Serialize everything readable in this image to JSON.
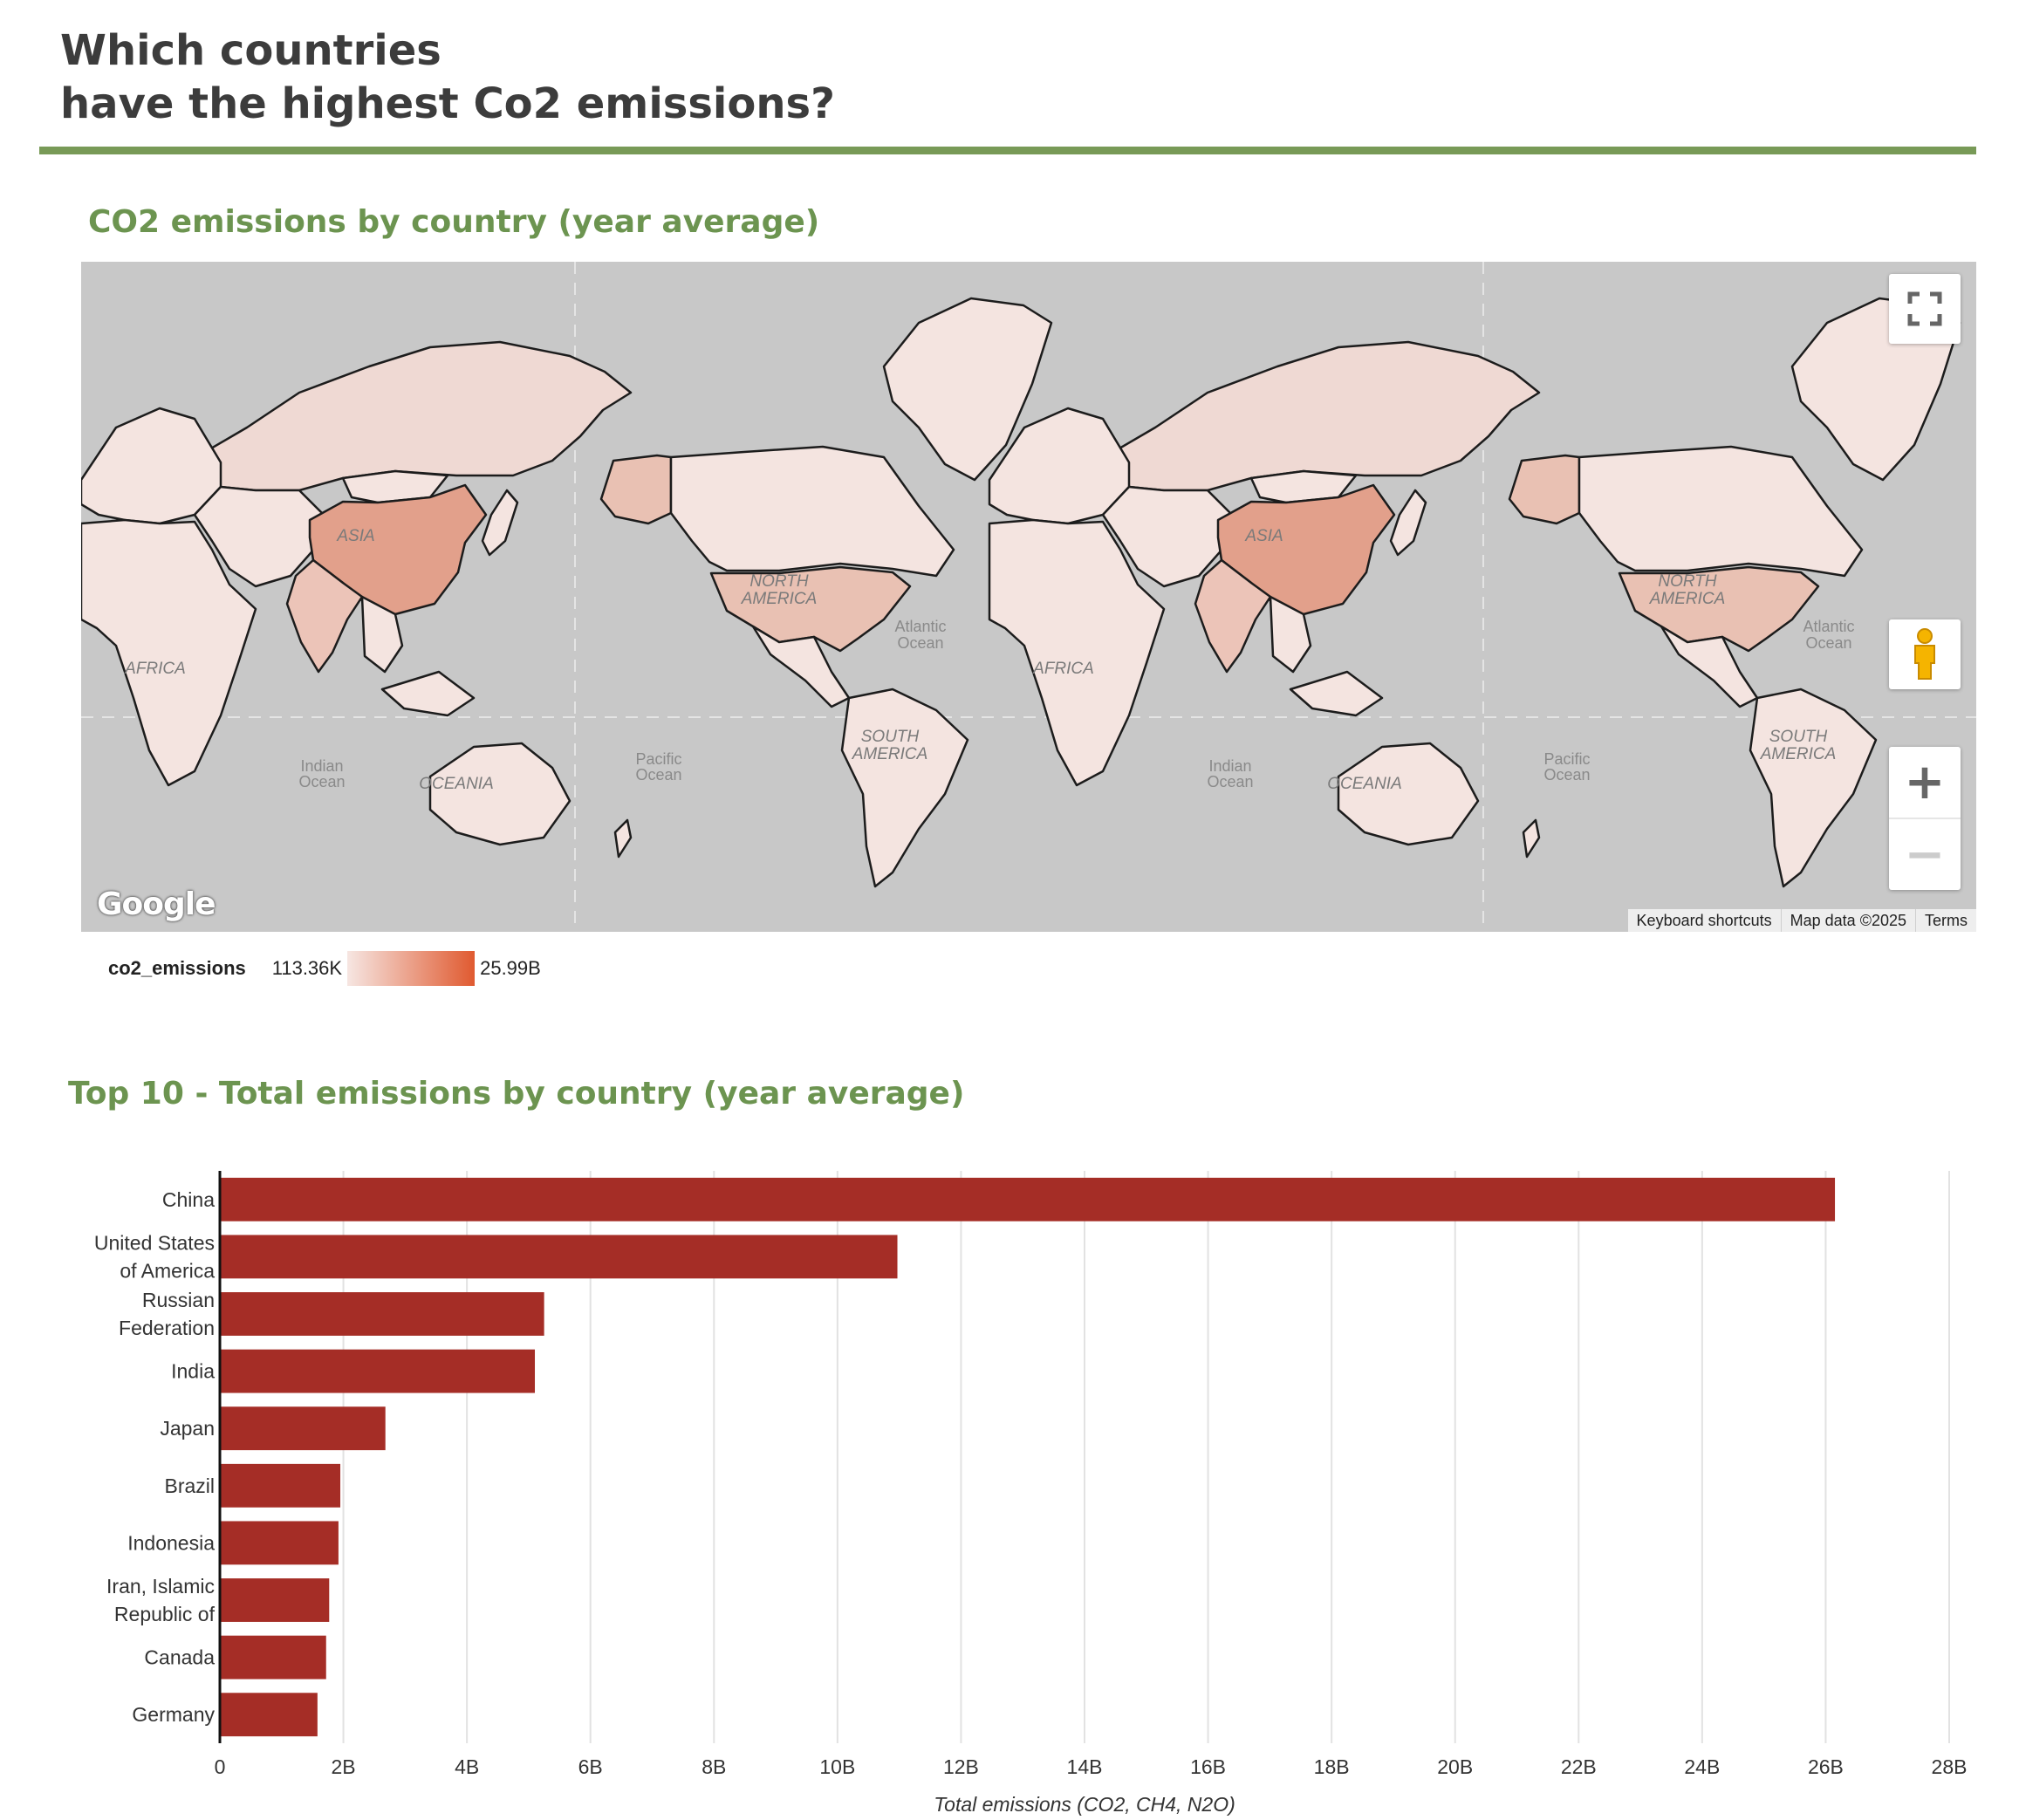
{
  "header": {
    "title_line1": "Which countries",
    "title_line2": "have the highest Co2 emissions?"
  },
  "map_section": {
    "title": "CO2 emissions by country (year average)",
    "labels": {
      "asia": "ASIA",
      "north_america_1": "NORTH",
      "north_america_2": "AMERICA",
      "south_america_1": "SOUTH",
      "south_america_2": "AMERICA",
      "africa": "AFRICA",
      "oceania": "OCEANIA",
      "atlantic_1": "Atlantic",
      "atlantic_2": "Ocean",
      "indian_1": "Indian",
      "indian_2": "Ocean",
      "pacific_1": "Pacific",
      "pacific_2": "Ocean"
    },
    "logo": "Google",
    "attribution": {
      "shortcuts": "Keyboard shortcuts",
      "map_data": "Map data ©2025",
      "terms": "Terms"
    },
    "legend": {
      "field": "co2_emissions",
      "min_label": "113.36K",
      "max_label": "25.99B",
      "color_min": "#f6e6e2",
      "color_max": "#e05a30"
    },
    "colors": {
      "ocean": "#c8c8c8",
      "land_low": "#f4e4e0",
      "land_russia": "#efd9d3",
      "land_usa": "#e9c1b3",
      "land_china": "#e2a08b",
      "land_india": "#ecc4b8",
      "land_no_data": "#bfc4c6"
    }
  },
  "chart_data": {
    "type": "bar",
    "orientation": "horizontal",
    "title": "Top 10 - Total emissions by country (year average)",
    "categories": [
      "China",
      "United States of America",
      "Russian Federation",
      "India",
      "Japan",
      "Brazil",
      "Indonesia",
      "Iran, Islamic Republic of",
      "Canada",
      "Germany"
    ],
    "category_lines": [
      [
        "China"
      ],
      [
        "United States",
        "of America"
      ],
      [
        "Russian",
        "Federation"
      ],
      [
        "India"
      ],
      [
        "Japan"
      ],
      [
        "Brazil"
      ],
      [
        "Indonesia"
      ],
      [
        "Iran, Islamic",
        "Republic of"
      ],
      [
        "Canada"
      ],
      [
        "Germany"
      ]
    ],
    "values": [
      26.15,
      10.97,
      5.25,
      5.1,
      2.68,
      1.95,
      1.92,
      1.77,
      1.72,
      1.58
    ],
    "value_unit": "B",
    "xlim": [
      0,
      28
    ],
    "xticks": [
      "0",
      "2B",
      "4B",
      "6B",
      "8B",
      "10B",
      "12B",
      "14B",
      "16B",
      "18B",
      "20B",
      "22B",
      "24B",
      "26B",
      "28B"
    ],
    "xlabel": "Total emissions (CO2, CH4, N2O)",
    "ylabel": "",
    "grid": true,
    "bar_color": "#a52d26"
  }
}
